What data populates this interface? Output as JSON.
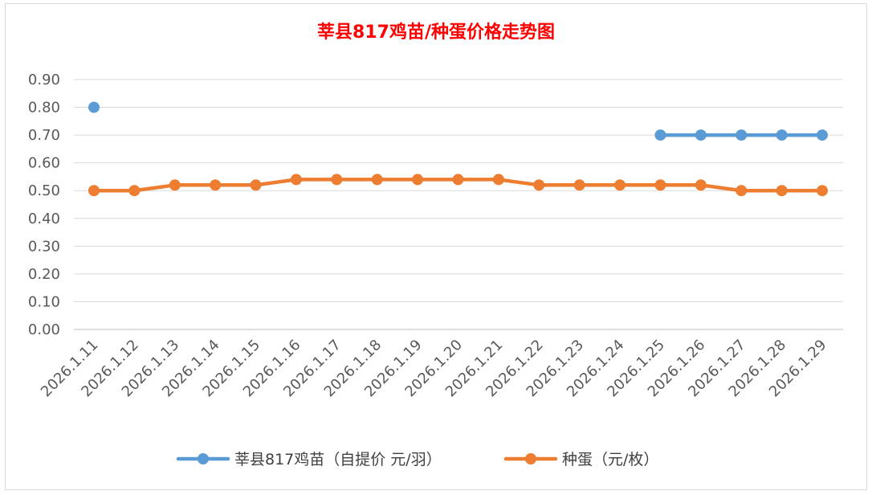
{
  "chart_data": {
    "type": "line",
    "title": "莘县817鸡苗/种蛋价格走势图",
    "xlabel": "",
    "ylabel": "",
    "ylim": [
      0,
      0.9
    ],
    "yticks": [
      "0.00",
      "0.10",
      "0.20",
      "0.30",
      "0.40",
      "0.50",
      "0.60",
      "0.70",
      "0.80",
      "0.90"
    ],
    "grid": true,
    "legend_position": "bottom",
    "categories": [
      "2026.1.11",
      "2026.1.12",
      "2026.1.13",
      "2026.1.14",
      "2026.1.15",
      "2026.1.16",
      "2026.1.17",
      "2026.1.18",
      "2026.1.19",
      "2026.1.20",
      "2026.1.21",
      "2026.1.22",
      "2026.1.23",
      "2026.1.24",
      "2026.1.25",
      "2026.1.26",
      "2026.1.27",
      "2026.1.28",
      "2026.1.29"
    ],
    "series": [
      {
        "name": "莘县817鸡苗（自提价 元/羽）",
        "color": "#5b9bd5",
        "values": [
          0.8,
          null,
          null,
          null,
          null,
          null,
          null,
          null,
          null,
          null,
          null,
          null,
          null,
          null,
          0.7,
          0.7,
          0.7,
          0.7,
          0.7
        ]
      },
      {
        "name": "种蛋（元/枚）",
        "color": "#ed7d31",
        "values": [
          0.5,
          0.5,
          0.52,
          0.52,
          0.52,
          0.54,
          0.54,
          0.54,
          0.54,
          0.54,
          0.54,
          0.52,
          0.52,
          0.52,
          0.52,
          0.52,
          0.5,
          0.5,
          0.5
        ]
      }
    ]
  }
}
